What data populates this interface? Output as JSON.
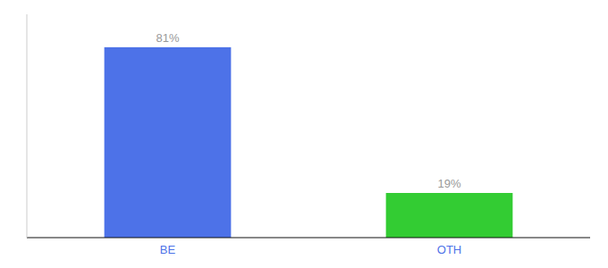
{
  "chart_data": {
    "type": "bar",
    "categories": [
      "BE",
      "OTH"
    ],
    "values": [
      81,
      19
    ],
    "value_labels": [
      "81%",
      "19%"
    ],
    "colors": [
      "#4d72e8",
      "#33cc33"
    ],
    "ylim": [
      0,
      95
    ],
    "data_labels": true,
    "tick_labels": "x",
    "grid": false
  }
}
